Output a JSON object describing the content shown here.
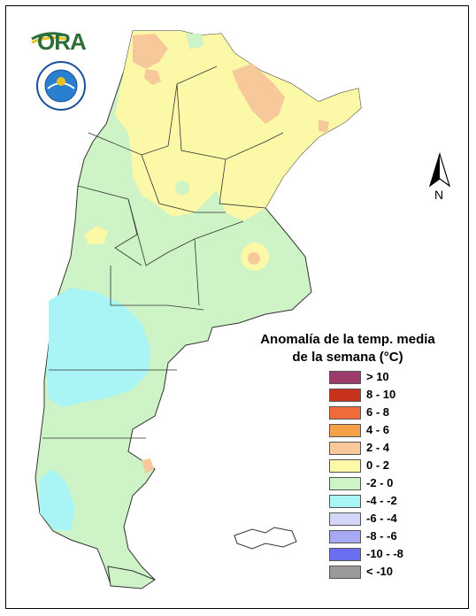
{
  "map": {
    "legend_title_line1": "Anomalía de la temp. media",
    "legend_title_line2": "de la semana (°C)",
    "north_label": "N",
    "logo_text": "ORA",
    "legend": [
      {
        "label": "> 10",
        "color": "#9b3a6b"
      },
      {
        "label": "8 - 10",
        "color": "#c8321c"
      },
      {
        "label": "6 - 8",
        "color": "#f06a3a"
      },
      {
        "label": "4 - 6",
        "color": "#f7a04a"
      },
      {
        "label": "2 - 4",
        "color": "#f7c99a"
      },
      {
        "label": "0 - 2",
        "color": "#fbf8a8"
      },
      {
        "label": "-2 - 0",
        "color": "#cdf3c6"
      },
      {
        "label": "-4 - -2",
        "color": "#a9f5f6"
      },
      {
        "label": "-6 - -4",
        "color": "#d4d6f7"
      },
      {
        "label": "-8 - -6",
        "color": "#a7a9f2"
      },
      {
        "label": "-10 - -8",
        "color": "#6a6ef0"
      },
      {
        "label": "< -10",
        "color": "#9a9a9a"
      }
    ]
  }
}
